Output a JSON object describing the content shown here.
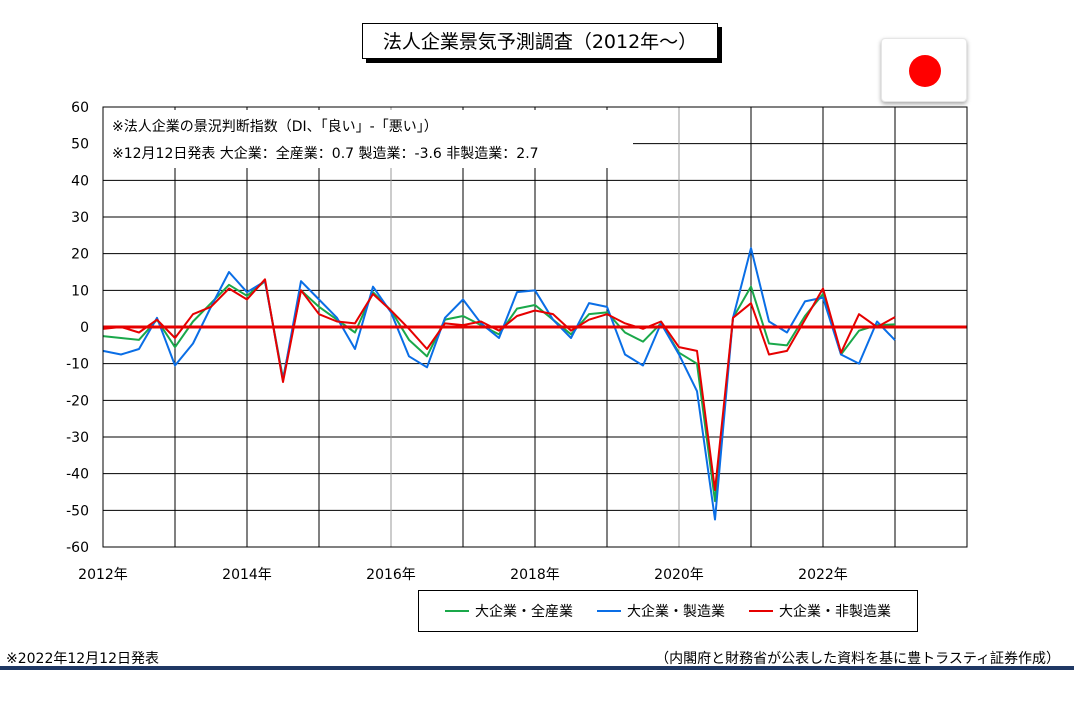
{
  "title": "法人企業景気予測調査（2012年～）",
  "flag_icon": "japan-flag-icon",
  "annotations": {
    "line1": "※法人企業の景況判断指数（DI、「良い」-「悪い」）",
    "line2": "※12月12日発表  大企業：全産業：0.7  製造業：-3.6  非製造業：2.7"
  },
  "footer": {
    "left": "※2022年12月12日発表",
    "right": "（内閣府と財務省が公表した資料を基に豊トラスティ証券作成）"
  },
  "colors": {
    "all_industries": "#1aa84a",
    "manufacturing": "#0a6ee6",
    "non_manufacturing": "#e60000",
    "zero_line": "#e60000",
    "bottom_rule": "#1f3864"
  },
  "chart_data": {
    "type": "line",
    "ylim": [
      -60,
      60
    ],
    "yticks": [
      60,
      50,
      40,
      30,
      20,
      10,
      0,
      -10,
      -20,
      -30,
      -40,
      -50,
      -60
    ],
    "xlim": [
      2012.0,
      2024.0
    ],
    "xtick_labels": [
      {
        "x": 2012,
        "label": "2012年"
      },
      {
        "x": 2014,
        "label": "2014年"
      },
      {
        "x": 2016,
        "label": "2016年"
      },
      {
        "x": 2018,
        "label": "2018年"
      },
      {
        "x": 2020,
        "label": "2020年"
      },
      {
        "x": 2022,
        "label": "2022年"
      }
    ],
    "zero_line": true,
    "legend_position": "bottom",
    "x": [
      2012.0,
      2012.25,
      2012.5,
      2012.75,
      2013.0,
      2013.25,
      2013.5,
      2013.75,
      2014.0,
      2014.25,
      2014.5,
      2014.75,
      2015.0,
      2015.25,
      2015.5,
      2015.75,
      2016.0,
      2016.25,
      2016.5,
      2016.75,
      2017.0,
      2017.25,
      2017.5,
      2017.75,
      2018.0,
      2018.25,
      2018.5,
      2018.75,
      2019.0,
      2019.25,
      2019.5,
      2019.75,
      2020.0,
      2020.25,
      2020.5,
      2020.75,
      2021.0,
      2021.25,
      2021.5,
      2021.75,
      2022.0,
      2022.25,
      2022.5,
      2022.75,
      2023.0
    ],
    "series": [
      {
        "name": "大企業・全産業",
        "color_key": "all_industries",
        "values": [
          -2.5,
          -3.0,
          -3.5,
          2.0,
          -5.5,
          1.5,
          6.5,
          11.5,
          8.5,
          12.5,
          -14.0,
          10.0,
          5.5,
          2.0,
          -1.5,
          9.5,
          4.5,
          -3.5,
          -8.0,
          2.0,
          3.0,
          0.5,
          -2.0,
          5.0,
          6.0,
          2.0,
          -2.0,
          3.5,
          4.0,
          -1.5,
          -4.0,
          1.0,
          -7.0,
          -10.0,
          -47.5,
          2.5,
          11.0,
          -4.5,
          -5.0,
          3.0,
          9.0,
          -7.5,
          -1.0,
          0.5,
          0.7
        ]
      },
      {
        "name": "大企業・製造業",
        "color_key": "manufacturing",
        "values": [
          -6.5,
          -7.5,
          -6.0,
          2.5,
          -10.5,
          -4.5,
          5.5,
          15.0,
          9.5,
          12.5,
          -14.5,
          12.5,
          7.5,
          2.5,
          -6.0,
          11.0,
          4.0,
          -8.0,
          -11.0,
          2.5,
          7.5,
          1.0,
          -3.0,
          9.5,
          10.0,
          2.0,
          -3.0,
          6.5,
          5.5,
          -7.5,
          -10.5,
          1.0,
          -7.5,
          -17.5,
          -52.5,
          2.5,
          21.5,
          1.5,
          -1.5,
          7.0,
          8.0,
          -7.5,
          -10.0,
          1.5,
          -3.6
        ]
      },
      {
        "name": "大企業・非製造業",
        "color_key": "non_manufacturing",
        "values": [
          -0.5,
          0.0,
          -1.5,
          2.0,
          -3.0,
          3.5,
          5.5,
          10.5,
          7.5,
          13.0,
          -15.0,
          10.0,
          3.5,
          1.5,
          1.0,
          9.0,
          4.5,
          -0.5,
          -6.0,
          1.0,
          0.5,
          1.5,
          -1.0,
          3.0,
          4.5,
          3.5,
          -1.0,
          2.0,
          3.5,
          1.0,
          -0.5,
          1.5,
          -5.5,
          -6.5,
          -44.5,
          2.5,
          6.5,
          -7.5,
          -6.5,
          2.0,
          10.5,
          -7.0,
          3.5,
          0.0,
          2.7
        ]
      }
    ]
  }
}
